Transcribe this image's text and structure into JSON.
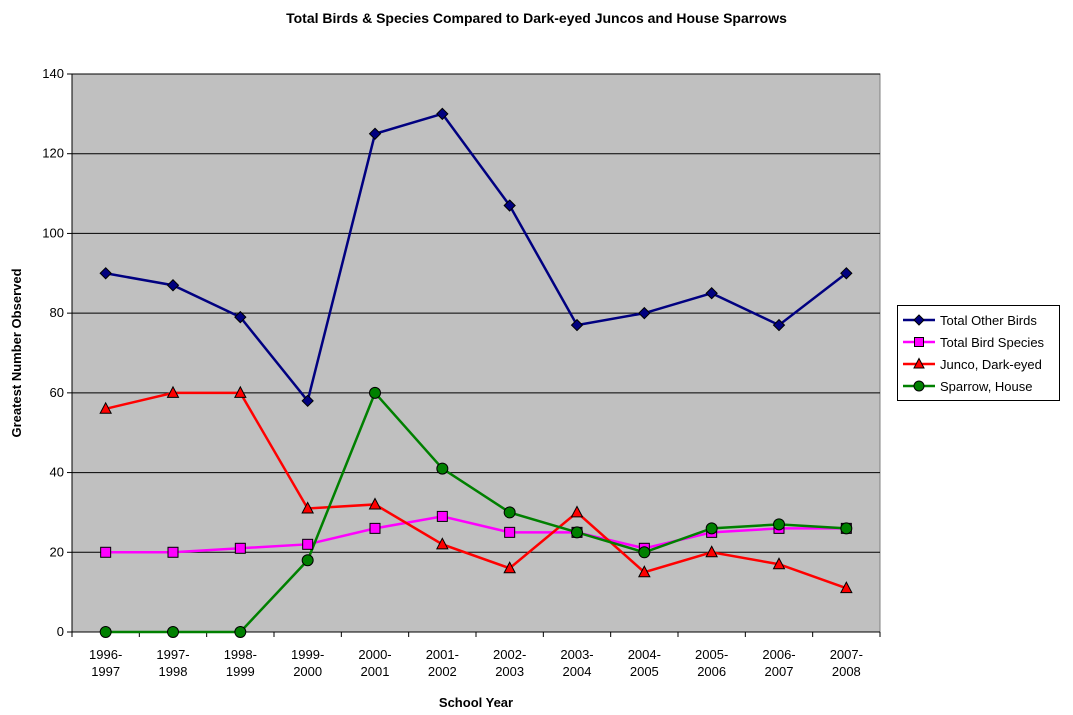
{
  "chart_data": {
    "type": "line",
    "title": "Total Birds & Species Compared to Dark-eyed Juncos and House Sparrows",
    "xlabel": "School Year",
    "ylabel": "Greatest Number Observed",
    "ylim": [
      0,
      140
    ],
    "yticks": [
      "0",
      "20",
      "40",
      "60",
      "80",
      "100",
      "120",
      "140"
    ],
    "categories": [
      [
        "1996-",
        "1997"
      ],
      [
        "1997-",
        "1998"
      ],
      [
        "1998-",
        "1999"
      ],
      [
        "1999-",
        "2000"
      ],
      [
        "2000-",
        "2001"
      ],
      [
        "2001-",
        "2002"
      ],
      [
        "2002-",
        "2003"
      ],
      [
        "2003-",
        "2004"
      ],
      [
        "2004-",
        "2005"
      ],
      [
        "2005-",
        "2006"
      ],
      [
        "2006-",
        "2007"
      ],
      [
        "2007-",
        "2008"
      ]
    ],
    "grid": true,
    "legend_position": "right",
    "series": [
      {
        "name": "Total Other Birds",
        "color": "#000080",
        "marker": "diamond",
        "values": [
          90,
          87,
          79,
          58,
          125,
          130,
          107,
          77,
          80,
          85,
          77,
          90
        ]
      },
      {
        "name": "Total Bird Species",
        "color": "#ff00ff",
        "marker": "square",
        "values": [
          20,
          20,
          21,
          22,
          26,
          29,
          25,
          25,
          21,
          25,
          26,
          26
        ]
      },
      {
        "name": "Junco, Dark-eyed",
        "color": "#ff0000",
        "marker": "triangle",
        "values": [
          56,
          60,
          60,
          31,
          32,
          22,
          16,
          30,
          15,
          20,
          17,
          11
        ]
      },
      {
        "name": "Sparrow, House",
        "color": "#008000",
        "marker": "circle",
        "values": [
          0,
          0,
          0,
          18,
          60,
          41,
          30,
          25,
          20,
          26,
          27,
          26
        ]
      }
    ],
    "plot_background": "#c0c0c0"
  }
}
